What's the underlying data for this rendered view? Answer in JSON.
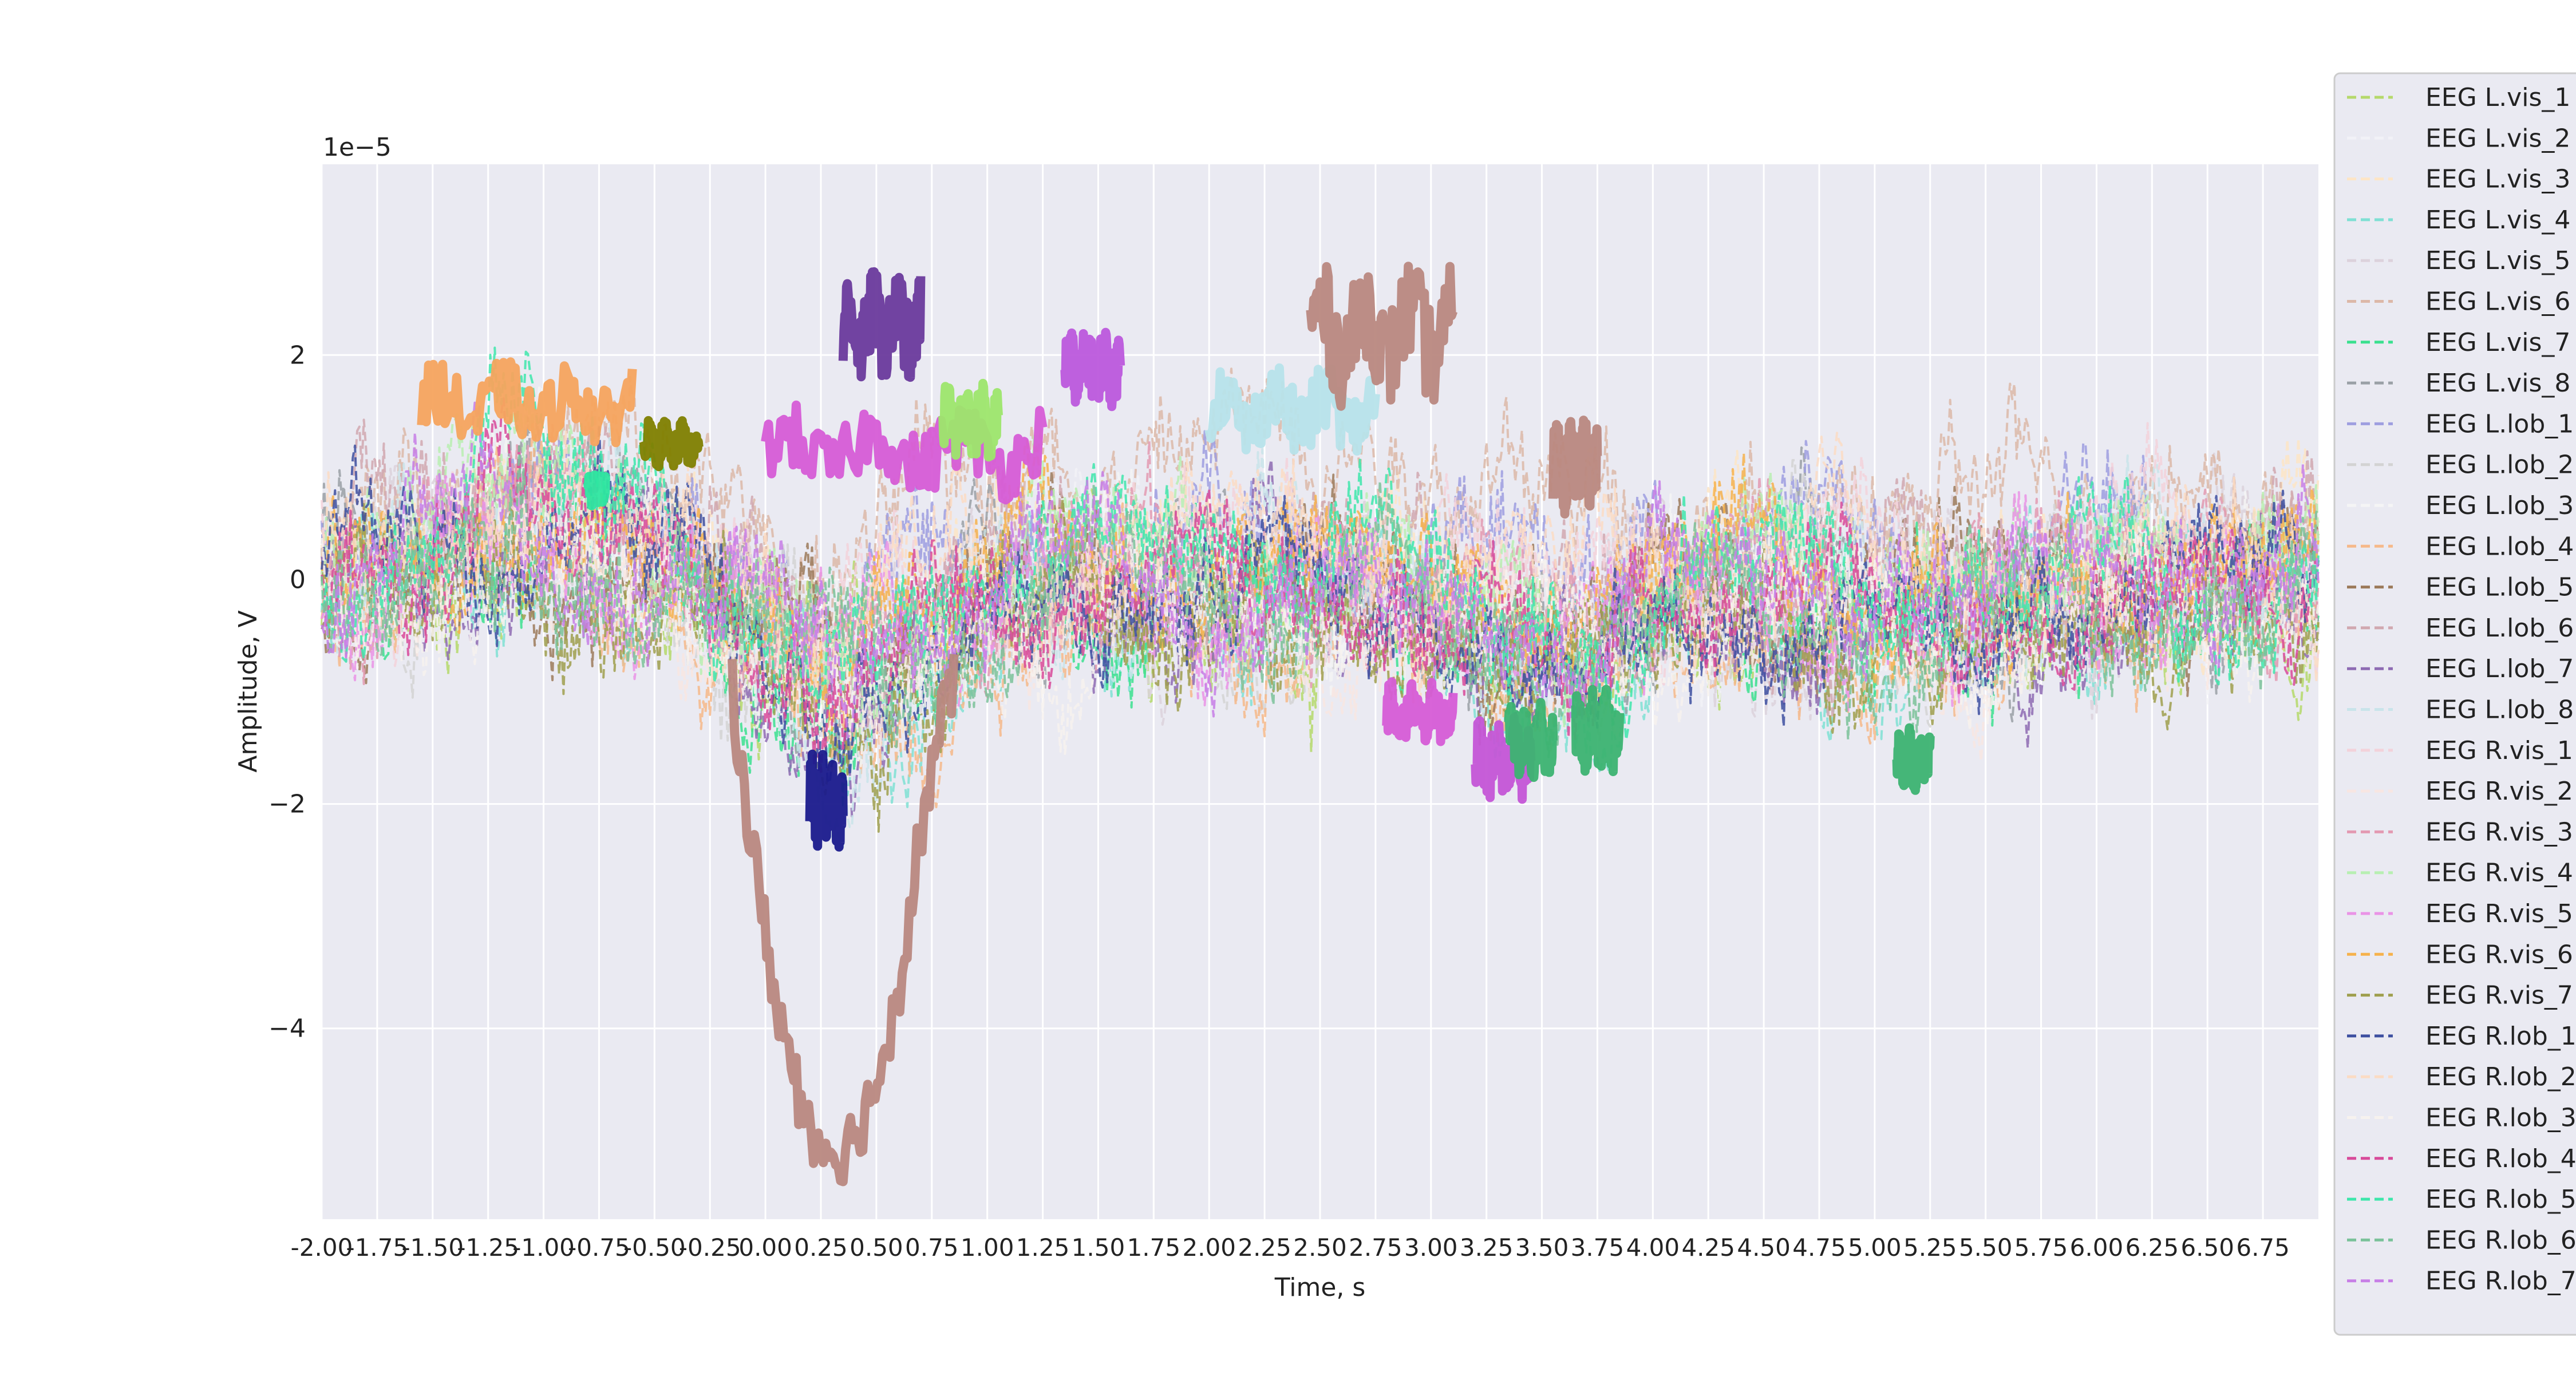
{
  "chart_data": {
    "type": "line",
    "xlabel": "Time, s",
    "ylabel": "Amplitude, V",
    "y_multiplier_label": "1e−5",
    "xlim": [
      -2.0,
      7.0
    ],
    "ylim": [
      -5.7,
      3.7
    ],
    "x_ticks": [
      -2.0,
      -1.75,
      -1.5,
      -1.25,
      -1.0,
      -0.75,
      -0.5,
      -0.25,
      0.0,
      0.25,
      0.5,
      0.75,
      1.0,
      1.25,
      1.5,
      1.75,
      2.0,
      2.25,
      2.5,
      2.75,
      3.0,
      3.25,
      3.5,
      3.75,
      4.0,
      4.25,
      4.5,
      4.75,
      5.0,
      5.25,
      5.5,
      5.75,
      6.0,
      6.25,
      6.5,
      6.75
    ],
    "x_tick_labels": [
      "-2.00",
      "-1.75",
      "-1.50",
      "-1.25",
      "-1.00",
      "-0.75",
      "-0.50",
      "-0.25",
      "0.00",
      "0.25",
      "0.50",
      "0.75",
      "1.00",
      "1.25",
      "1.50",
      "1.75",
      "2.00",
      "2.25",
      "2.50",
      "2.75",
      "3.00",
      "3.25",
      "3.50",
      "3.75",
      "4.00",
      "4.25",
      "4.50",
      "4.75",
      "5.00",
      "5.25",
      "5.50",
      "5.75",
      "6.00",
      "6.25",
      "6.50",
      "6.75"
    ],
    "y_ticks": [
      -4,
      -2,
      0,
      2
    ],
    "y_tick_labels": [
      "−4",
      "−2",
      "0",
      "2"
    ],
    "grid": true,
    "legend_position": "right",
    "series": [
      {
        "name": "EEG L.vis_1",
        "color": "#b5d96b",
        "env": [
          [
            -2,
            0
          ],
          [
            7,
            0
          ]
        ],
        "hi": []
      },
      {
        "name": "EEG L.vis_2",
        "color": "#f2f2f7",
        "env": [
          [
            -2,
            0
          ],
          [
            7,
            0
          ]
        ],
        "hi": []
      },
      {
        "name": "EEG L.vis_3",
        "color": "#fde5c6",
        "env": [
          [
            -2,
            0
          ],
          [
            7,
            0
          ]
        ],
        "hi": []
      },
      {
        "name": "EEG L.vis_4",
        "color": "#7fe0d4",
        "env": [
          [
            -2,
            0
          ],
          [
            7,
            0
          ]
        ],
        "hi": []
      },
      {
        "name": "EEG L.vis_5",
        "color": "#dcd2dc",
        "env": [
          [
            -2,
            0
          ],
          [
            7,
            0
          ]
        ],
        "hi": []
      },
      {
        "name": "EEG L.vis_6",
        "color": "#dcb8a8",
        "env": [
          [
            -2,
            -0.2
          ],
          [
            -1.0,
            0.8
          ],
          [
            -0.5,
            0.3
          ],
          [
            0.5,
            0.8
          ],
          [
            2.0,
            1.0
          ],
          [
            3.0,
            1.2
          ],
          [
            4.0,
            0.6
          ],
          [
            5.0,
            0.2
          ],
          [
            5.7,
            1.0
          ],
          [
            6.2,
            0.8
          ],
          [
            7,
            0
          ]
        ],
        "hi": []
      },
      {
        "name": "EEG L.vis_7",
        "color": "#3be08f",
        "env": [
          [
            -2,
            0
          ],
          [
            7,
            0
          ]
        ],
        "hi": []
      },
      {
        "name": "EEG L.vis_8",
        "color": "#9aa0a6",
        "env": [
          [
            -2,
            0
          ],
          [
            7,
            0
          ]
        ],
        "hi": []
      },
      {
        "name": "EEG L.lob_1",
        "color": "#9e9ee0",
        "env": [
          [
            -2,
            0
          ],
          [
            7,
            0
          ]
        ],
        "hi": []
      },
      {
        "name": "EEG L.lob_2",
        "color": "#d3d3d3",
        "env": [
          [
            -2,
            0
          ],
          [
            7,
            0
          ]
        ],
        "hi": []
      },
      {
        "name": "EEG L.lob_3",
        "color": "#f5f5f5",
        "env": [
          [
            -2,
            0
          ],
          [
            7,
            0
          ]
        ],
        "hi": []
      },
      {
        "name": "EEG L.lob_4",
        "color": "#f6b98a",
        "env": [
          [
            -2,
            0
          ],
          [
            7,
            0
          ]
        ],
        "hi": []
      },
      {
        "name": "EEG L.lob_5",
        "color": "#9c7a5a",
        "env": [
          [
            -2,
            0
          ],
          [
            7,
            0
          ]
        ],
        "hi": []
      },
      {
        "name": "EEG L.lob_6",
        "color": "#d1a8b0",
        "env": [
          [
            -2,
            0
          ],
          [
            7,
            0
          ]
        ],
        "hi": []
      },
      {
        "name": "EEG L.lob_7",
        "color": "#8e6bb3",
        "env": [
          [
            -2,
            0
          ],
          [
            7,
            0
          ]
        ],
        "hi": []
      },
      {
        "name": "EEG L.lob_8",
        "color": "#c9e4ea",
        "env": [
          [
            -2,
            0
          ],
          [
            7,
            0
          ]
        ],
        "hi": []
      },
      {
        "name": "EEG R.vis_1",
        "color": "#f3d2da",
        "env": [
          [
            -2,
            0
          ],
          [
            7,
            0
          ]
        ],
        "hi": []
      },
      {
        "name": "EEG R.vis_2",
        "color": "#f8e6e2",
        "env": [
          [
            -2,
            0
          ],
          [
            7,
            0
          ]
        ],
        "hi": []
      },
      {
        "name": "EEG R.vis_3",
        "color": "#e39ab2",
        "env": [
          [
            -2,
            0
          ],
          [
            7,
            0
          ]
        ],
        "hi": []
      },
      {
        "name": "EEG R.vis_4",
        "color": "#b8efb2",
        "env": [
          [
            -2,
            0
          ],
          [
            7,
            0
          ]
        ],
        "hi": []
      },
      {
        "name": "EEG R.vis_5",
        "color": "#ea93e6",
        "env": [
          [
            -2,
            0
          ],
          [
            7,
            0
          ]
        ],
        "hi": []
      },
      {
        "name": "EEG R.vis_6",
        "color": "#f6b24c",
        "env": [
          [
            -2,
            0
          ],
          [
            7,
            0
          ]
        ],
        "hi": []
      },
      {
        "name": "EEG R.vis_7",
        "color": "#9f9f4e",
        "env": [
          [
            -2,
            0
          ],
          [
            7,
            0
          ]
        ],
        "hi": []
      },
      {
        "name": "EEG R.lob_1",
        "color": "#3d4fa0",
        "env": [
          [
            -2,
            0
          ],
          [
            7,
            0
          ]
        ],
        "hi": []
      },
      {
        "name": "EEG R.lob_2",
        "color": "#fbdcc4",
        "env": [
          [
            -2,
            0
          ],
          [
            7,
            0
          ]
        ],
        "hi": []
      },
      {
        "name": "EEG R.lob_3",
        "color": "#f7f2ee",
        "env": [
          [
            -2,
            0
          ],
          [
            7,
            0
          ]
        ],
        "hi": []
      },
      {
        "name": "EEG R.lob_4",
        "color": "#d84a9a",
        "env": [
          [
            -2,
            0
          ],
          [
            7,
            0
          ]
        ],
        "hi": []
      },
      {
        "name": "EEG R.lob_5",
        "color": "#3ee6ab",
        "env": [
          [
            -2,
            0
          ],
          [
            7,
            0
          ]
        ],
        "hi": []
      },
      {
        "name": "EEG R.lob_6",
        "color": "#7bc29a",
        "env": [
          [
            -2,
            0
          ],
          [
            7,
            0
          ]
        ],
        "hi": []
      },
      {
        "name": "EEG R.lob_7",
        "color": "#c77ee6",
        "env": [
          [
            -2,
            0
          ],
          [
            7,
            0
          ]
        ],
        "hi": []
      }
    ]
  }
}
